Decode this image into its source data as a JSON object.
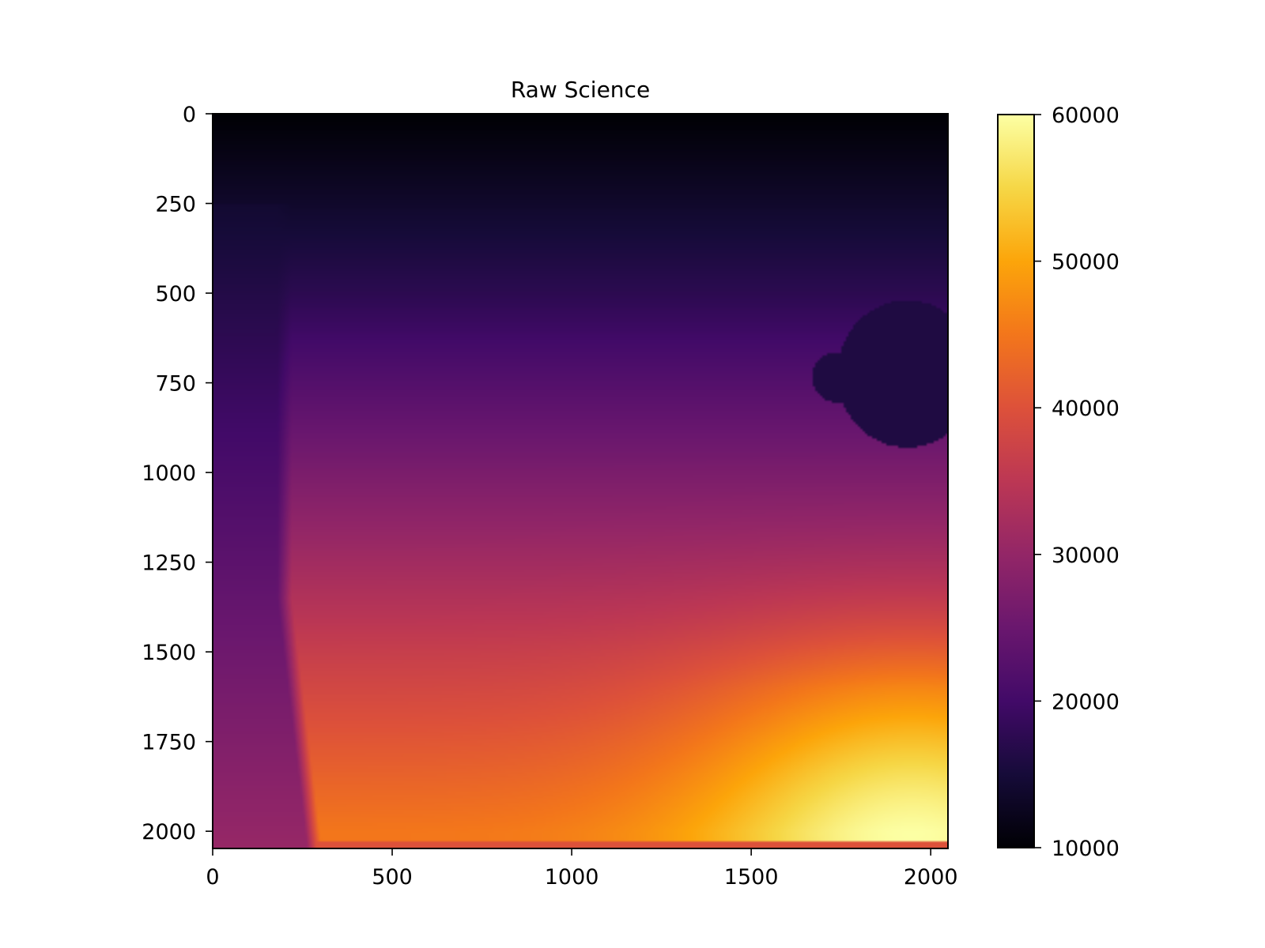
{
  "chart_data": {
    "type": "heatmap",
    "title": "Raw Science",
    "xlabel": "",
    "ylabel": "",
    "xlim": [
      0,
      2048
    ],
    "ylim": [
      2048,
      0
    ],
    "y_axis_inverted": true,
    "x_ticks": [
      0,
      500,
      1000,
      1500,
      2000
    ],
    "y_ticks": [
      0,
      250,
      500,
      750,
      1000,
      1250,
      1500,
      1750,
      2000
    ],
    "colormap": "inferno",
    "colorbar": {
      "min": 10000,
      "max": 60000,
      "ticks": [
        10000,
        20000,
        30000,
        40000,
        50000,
        60000
      ],
      "placement": "right"
    },
    "grid": false,
    "image_size": [
      2048,
      2048
    ],
    "value_field": {
      "top_edge_value": 10000,
      "row_500_value": 17500,
      "row_1000_value": 27000,
      "row_1500_value": 36500,
      "row_2000_value": 45000,
      "bright_corner": {
        "x": 1950,
        "y": 2000,
        "value": 60000
      },
      "left_strip": {
        "x_range": [
          0,
          220
        ],
        "row_1000_value": 21000,
        "row_2000_value": 30000
      },
      "dark_spot": {
        "x_range": [
          1700,
          2048
        ],
        "y_range": [
          520,
          930
        ],
        "value": 16000
      },
      "bottom_edge_rows": {
        "y_range": [
          2030,
          2048
        ],
        "value": 40000
      }
    }
  }
}
